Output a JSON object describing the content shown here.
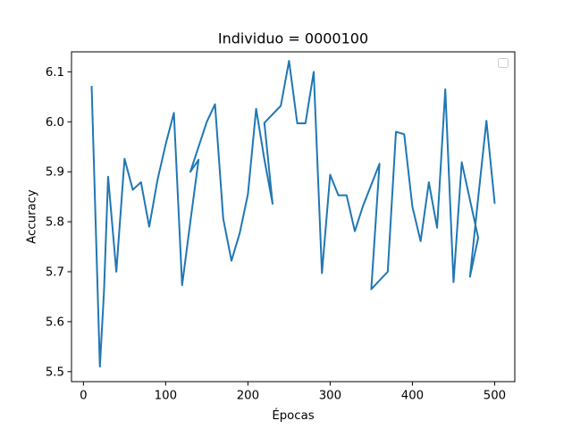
{
  "chart_data": {
    "type": "line",
    "title": "Individuo = 0000100",
    "xlabel": "Épocas",
    "ylabel": "Accuracy",
    "xlim": [
      -14.5,
      524.5
    ],
    "ylim": [
      5.48,
      6.14
    ],
    "xticks": [
      0,
      100,
      200,
      300,
      400,
      500
    ],
    "xtick_labels": [
      "0",
      "100",
      "200",
      "300",
      "400",
      "500"
    ],
    "yticks": [
      5.5,
      5.6,
      5.7,
      5.8,
      5.9,
      6.0,
      6.1
    ],
    "ytick_labels": [
      "5.5",
      "5.6",
      "5.7",
      "5.8",
      "5.9",
      "6.0",
      "6.1"
    ],
    "grid": false,
    "legend": {
      "placement": "top-right",
      "entries": []
    },
    "series": [
      {
        "color": "#1f77b4",
        "x": [
          10,
          20,
          25,
          30,
          40,
          50,
          60,
          70,
          80,
          90,
          100,
          110,
          120,
          130,
          140,
          130,
          150,
          160,
          170,
          180,
          190,
          200,
          210,
          220,
          230,
          220,
          240,
          250,
          260,
          270,
          280,
          290,
          300,
          310,
          320,
          330,
          340,
          360,
          350,
          370,
          380,
          390,
          400,
          410,
          420,
          430,
          440,
          450,
          460,
          480,
          470,
          480,
          490,
          500
        ],
        "y": [
          6.07,
          5.51,
          5.66,
          5.89,
          5.7,
          5.926,
          5.864,
          5.879,
          5.79,
          5.883,
          5.955,
          6.018,
          5.673,
          5.8,
          5.924,
          5.9,
          6.0,
          6.035,
          5.806,
          5.722,
          5.777,
          5.855,
          6.026,
          5.925,
          5.836,
          5.998,
          6.032,
          6.122,
          5.997,
          5.997,
          6.1,
          5.697,
          5.894,
          5.853,
          5.853,
          5.781,
          5.832,
          5.916,
          5.665,
          5.7,
          5.98,
          5.975,
          5.83,
          5.761,
          5.879,
          5.788,
          6.065,
          5.679,
          5.919,
          5.768,
          5.69,
          5.848,
          6.002,
          5.838
        ]
      }
    ]
  }
}
